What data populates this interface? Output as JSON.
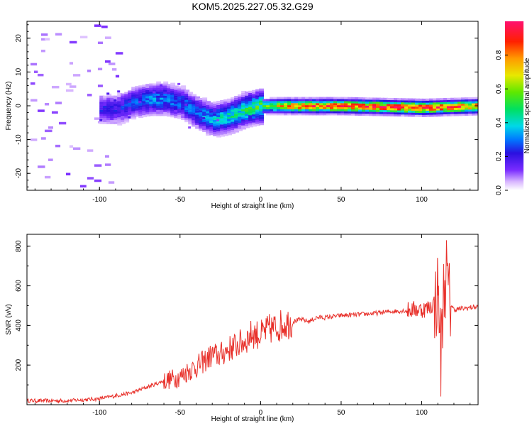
{
  "title": "KOM5.2025.227.05.32.G29",
  "chart_data": [
    {
      "type": "heatmap",
      "name": "spectrogram",
      "xlabel": "Height of straight line (km)",
      "ylabel": "Frequency (Hz)",
      "xlim": [
        -145,
        135
      ],
      "ylim": [
        -25,
        25
      ],
      "x_ticks": [
        -100,
        -50,
        0,
        50,
        100
      ],
      "y_ticks": [
        -20,
        -10,
        0,
        10,
        20
      ],
      "colorbar": {
        "label": "Normalized spectral amplitude",
        "range": [
          0,
          1
        ],
        "ticks": [
          "0.0",
          "0.2",
          "0.4",
          "0.6",
          "0.8"
        ]
      },
      "ridge": {
        "x": [
          -90,
          -80,
          -70,
          -60,
          -50,
          -40,
          -30,
          -20,
          -10,
          0,
          10,
          20,
          50,
          100,
          135
        ],
        "y": [
          -1,
          1,
          2,
          2,
          1,
          -2,
          -4,
          -3,
          -1,
          0,
          0,
          0,
          0,
          -0.5,
          0
        ],
        "amplitude": [
          0.2,
          0.25,
          0.3,
          0.3,
          0.28,
          0.3,
          0.35,
          0.4,
          0.45,
          0.5,
          0.7,
          0.8,
          0.85,
          0.9,
          0.8
        ]
      }
    },
    {
      "type": "line",
      "name": "snr",
      "xlabel": "Height of straight line (km)",
      "ylabel": "SNR (v/v)",
      "xlim": [
        -145,
        135
      ],
      "ylim": [
        0,
        860
      ],
      "x_ticks": [
        -100,
        -50,
        0,
        50,
        100
      ],
      "y_ticks": [
        200,
        400,
        600,
        800
      ],
      "color": "#e8302a",
      "series": [
        {
          "name": "SNR",
          "x": [
            -145,
            -120,
            -100,
            -90,
            -80,
            -70,
            -60,
            -50,
            -45,
            -40,
            -35,
            -30,
            -25,
            -20,
            -15,
            -10,
            -5,
            0,
            5,
            10,
            15,
            20,
            25,
            30,
            35,
            40,
            50,
            60,
            70,
            80,
            90,
            95,
            100,
            105,
            108,
            110,
            111,
            112,
            113,
            115,
            117,
            120,
            125,
            130,
            135
          ],
          "y": [
            20,
            20,
            30,
            45,
            60,
            90,
            120,
            140,
            170,
            190,
            220,
            250,
            250,
            280,
            300,
            320,
            360,
            350,
            380,
            390,
            410,
            420,
            430,
            420,
            440,
            440,
            450,
            455,
            460,
            470,
            475,
            480,
            480,
            490,
            520,
            560,
            480,
            190,
            500,
            680,
            520,
            480,
            485,
            490,
            495
          ]
        }
      ]
    }
  ]
}
